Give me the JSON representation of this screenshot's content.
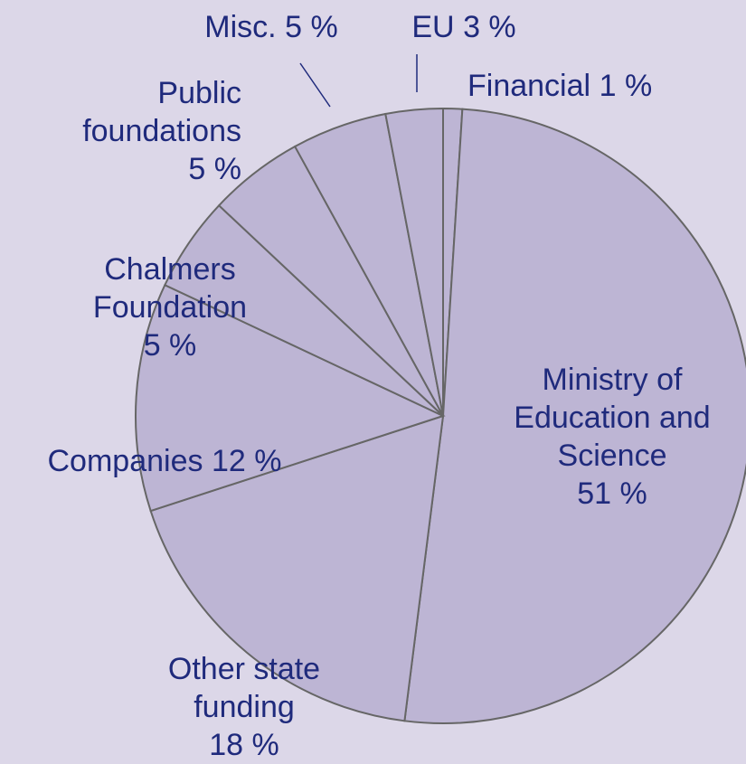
{
  "chart_data": {
    "type": "pie",
    "categories": [
      "Financial",
      "Ministry of Education and Science",
      "Other state funding",
      "Companies",
      "Chalmers Foundation",
      "Public foundations",
      "Misc.",
      "EU"
    ],
    "values": [
      1,
      51,
      18,
      12,
      5,
      5,
      5,
      3
    ],
    "value_labels": [
      "1 %",
      "51 %",
      "18 %",
      "12 %",
      "5 %",
      "5 %",
      "5 %",
      "3 %"
    ],
    "color": "#bdb5d4"
  }
}
